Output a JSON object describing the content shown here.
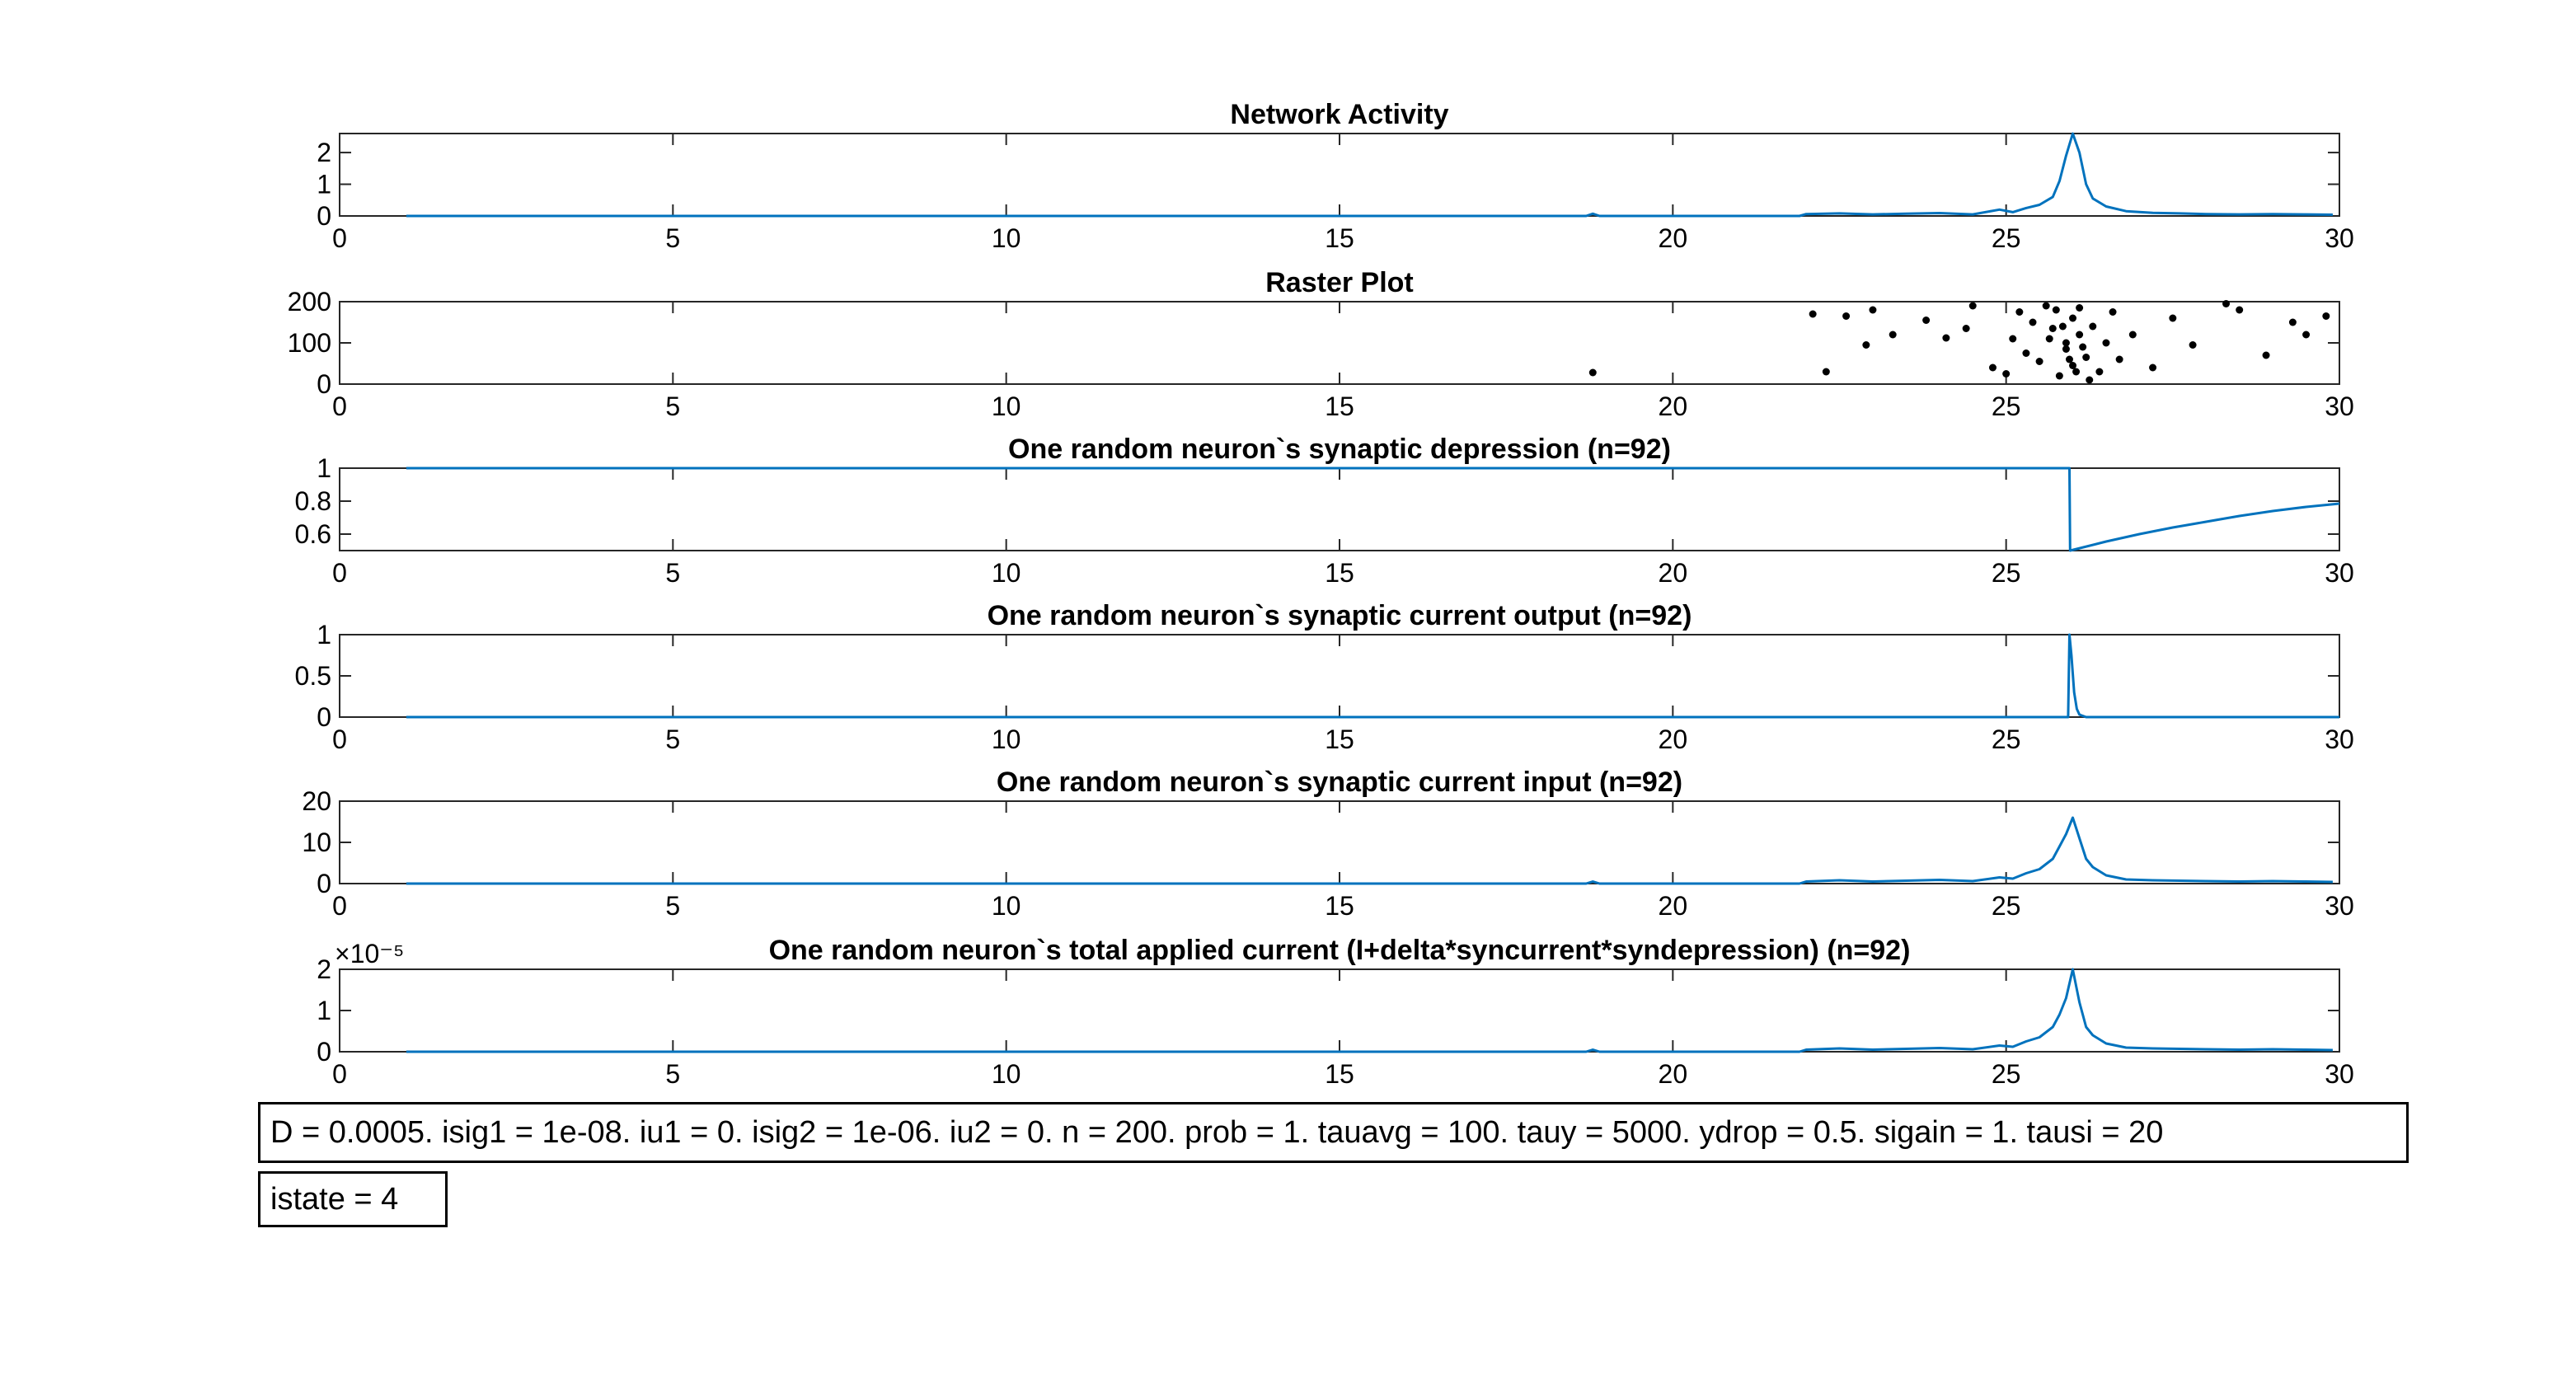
{
  "figure": {
    "background": "#ffffff",
    "line_color": "#0072BD",
    "marker_color": "#000000"
  },
  "chart_data": [
    {
      "type": "line",
      "title": "Network Activity",
      "xlim": [
        0,
        30
      ],
      "ylim": [
        0,
        2.6
      ],
      "xticks": [
        0,
        5,
        10,
        15,
        20,
        25,
        30
      ],
      "xtick_labels": [
        "0",
        "5",
        "10",
        "15",
        "20",
        "25",
        "30"
      ],
      "yticks": [
        0,
        1,
        2
      ],
      "ytick_labels": [
        "0",
        "1",
        "2"
      ],
      "y_exponent_label": "",
      "grid": false,
      "series": [
        {
          "x": [
            1,
            18.7,
            18.8,
            18.9,
            21.9,
            22,
            22.5,
            23,
            23.5,
            24,
            24.5,
            24.9,
            25.1,
            25.3,
            25.5,
            25.7,
            25.8,
            25.9,
            26.0,
            26.1,
            26.2,
            26.3,
            26.5,
            26.8,
            27.2,
            27.6,
            28,
            28.5,
            29,
            29.5,
            29.9
          ],
          "y": [
            0,
            0,
            0.07,
            0,
            0,
            0.06,
            0.08,
            0.05,
            0.07,
            0.09,
            0.05,
            0.2,
            0.12,
            0.25,
            0.35,
            0.6,
            1.1,
            1.9,
            2.6,
            2.0,
            1.0,
            0.55,
            0.3,
            0.15,
            0.1,
            0.08,
            0.06,
            0.05,
            0.06,
            0.05,
            0.04
          ]
        }
      ]
    },
    {
      "type": "scatter",
      "title": "Raster Plot",
      "xlim": [
        0,
        30
      ],
      "ylim": [
        0,
        200
      ],
      "xticks": [
        0,
        5,
        10,
        15,
        20,
        25,
        30
      ],
      "xtick_labels": [
        "0",
        "5",
        "10",
        "15",
        "20",
        "25",
        "30"
      ],
      "yticks": [
        0,
        100,
        200
      ],
      "ytick_labels": [
        "0",
        "100",
        "200"
      ],
      "y_exponent_label": "",
      "grid": false,
      "series": [
        {
          "x": [
            18.8,
            22.1,
            22.3,
            22.6,
            22.9,
            23.0,
            23.3,
            23.8,
            24.1,
            24.4,
            24.5,
            24.8,
            25.0,
            25.1,
            25.2,
            25.3,
            25.4,
            25.5,
            25.6,
            25.7,
            25.8,
            25.9,
            26.0,
            26.0,
            26.1,
            26.1,
            26.2,
            26.3,
            26.4,
            26.5,
            26.6,
            26.7,
            26.9,
            27.2,
            27.5,
            27.8,
            28.3,
            28.5,
            28.9,
            29.3,
            29.5,
            29.8,
            25.9,
            25.95,
            26.05,
            25.85,
            25.75,
            25.65,
            26.15,
            26.25
          ],
          "y": [
            28,
            170,
            30,
            165,
            95,
            180,
            120,
            155,
            112,
            135,
            190,
            40,
            25,
            110,
            175,
            75,
            150,
            55,
            190,
            135,
            20,
            85,
            160,
            45,
            120,
            185,
            65,
            140,
            30,
            100,
            175,
            60,
            120,
            40,
            160,
            95,
            195,
            180,
            70,
            150,
            120,
            165,
            100,
            60,
            30,
            140,
            180,
            110,
            90,
            10
          ]
        }
      ]
    },
    {
      "type": "line",
      "title": "One random neuron`s synaptic depression (n=92)",
      "xlim": [
        0,
        30
      ],
      "ylim": [
        0.5,
        1
      ],
      "xticks": [
        0,
        5,
        10,
        15,
        20,
        25,
        30
      ],
      "xtick_labels": [
        "0",
        "5",
        "10",
        "15",
        "20",
        "25",
        "30"
      ],
      "yticks": [
        0.6,
        0.8,
        1
      ],
      "ytick_labels": [
        "0.6",
        "0.8",
        "1"
      ],
      "y_exponent_label": "",
      "grid": false,
      "series": [
        {
          "x": [
            1,
            25.95,
            25.96,
            26.5,
            27,
            27.5,
            28,
            28.5,
            29,
            29.5,
            30
          ],
          "y": [
            1,
            1,
            0.5,
            0.555,
            0.6,
            0.64,
            0.675,
            0.71,
            0.74,
            0.765,
            0.785
          ]
        }
      ]
    },
    {
      "type": "line",
      "title": "One random neuron`s synaptic current output (n=92)",
      "xlim": [
        0,
        30
      ],
      "ylim": [
        0,
        1
      ],
      "xticks": [
        0,
        5,
        10,
        15,
        20,
        25,
        30
      ],
      "xtick_labels": [
        "0",
        "5",
        "10",
        "15",
        "20",
        "25",
        "30"
      ],
      "yticks": [
        0,
        0.5,
        1
      ],
      "ytick_labels": [
        "0",
        "0.5",
        "1"
      ],
      "y_exponent_label": "",
      "grid": false,
      "series": [
        {
          "x": [
            1,
            25.93,
            25.95,
            25.98,
            26.02,
            26.06,
            26.1,
            26.2,
            30
          ],
          "y": [
            0,
            0,
            1,
            0.75,
            0.3,
            0.1,
            0.03,
            0,
            0
          ]
        }
      ]
    },
    {
      "type": "line",
      "title": "One random neuron`s synaptic current input (n=92)",
      "xlim": [
        0,
        30
      ],
      "ylim": [
        0,
        20
      ],
      "xticks": [
        0,
        5,
        10,
        15,
        20,
        25,
        30
      ],
      "xtick_labels": [
        "0",
        "5",
        "10",
        "15",
        "20",
        "25",
        "30"
      ],
      "yticks": [
        0,
        10,
        20
      ],
      "ytick_labels": [
        "0",
        "10",
        "20"
      ],
      "y_exponent_label": "",
      "grid": false,
      "series": [
        {
          "x": [
            1,
            18.7,
            18.8,
            18.9,
            21.9,
            22,
            22.5,
            23,
            23.5,
            24,
            24.5,
            24.9,
            25.1,
            25.3,
            25.5,
            25.7,
            25.8,
            25.9,
            26.0,
            26.1,
            26.2,
            26.3,
            26.5,
            26.8,
            27.2,
            27.6,
            28,
            28.5,
            29,
            29.5,
            29.9
          ],
          "y": [
            0,
            0,
            0.5,
            0,
            0,
            0.5,
            0.8,
            0.5,
            0.7,
            0.9,
            0.6,
            1.5,
            1.2,
            2.5,
            3.5,
            6,
            9,
            12,
            16,
            11,
            6,
            4,
            2,
            1,
            0.8,
            0.7,
            0.6,
            0.5,
            0.6,
            0.5,
            0.4
          ]
        }
      ]
    },
    {
      "type": "line",
      "title": "One random neuron`s total applied current (I+delta*syncurrent*syndepression) (n=92)",
      "xlim": [
        0,
        30
      ],
      "ylim": [
        0,
        2
      ],
      "xticks": [
        0,
        5,
        10,
        15,
        20,
        25,
        30
      ],
      "xtick_labels": [
        "0",
        "5",
        "10",
        "15",
        "20",
        "25",
        "30"
      ],
      "yticks": [
        0,
        1,
        2
      ],
      "ytick_labels": [
        "0",
        "1",
        "2"
      ],
      "y_exponent_label": "×10⁻⁵",
      "grid": false,
      "series": [
        {
          "x": [
            1,
            18.7,
            18.8,
            18.9,
            21.9,
            22,
            22.5,
            23,
            23.5,
            24,
            24.5,
            24.9,
            25.1,
            25.3,
            25.5,
            25.7,
            25.8,
            25.9,
            26.0,
            26.1,
            26.2,
            26.3,
            26.5,
            26.8,
            27.2,
            27.6,
            28,
            28.5,
            29,
            29.5,
            29.9
          ],
          "y": [
            0,
            0,
            0.05,
            0,
            0,
            0.05,
            0.08,
            0.05,
            0.07,
            0.09,
            0.06,
            0.15,
            0.12,
            0.25,
            0.35,
            0.6,
            0.9,
            1.3,
            2.0,
            1.2,
            0.6,
            0.4,
            0.2,
            0.1,
            0.08,
            0.07,
            0.06,
            0.05,
            0.06,
            0.05,
            0.04
          ]
        }
      ]
    }
  ],
  "annotations": {
    "params": "D = 0.0005. isig1 = 1e-08. iu1 = 0. isig2 = 1e-06. iu2 = 0. n = 200. prob = 1. tauavg = 100. tauy = 5000. ydrop = 0.5. sigain = 1. tausi = 20",
    "istate": "istate = 4"
  }
}
